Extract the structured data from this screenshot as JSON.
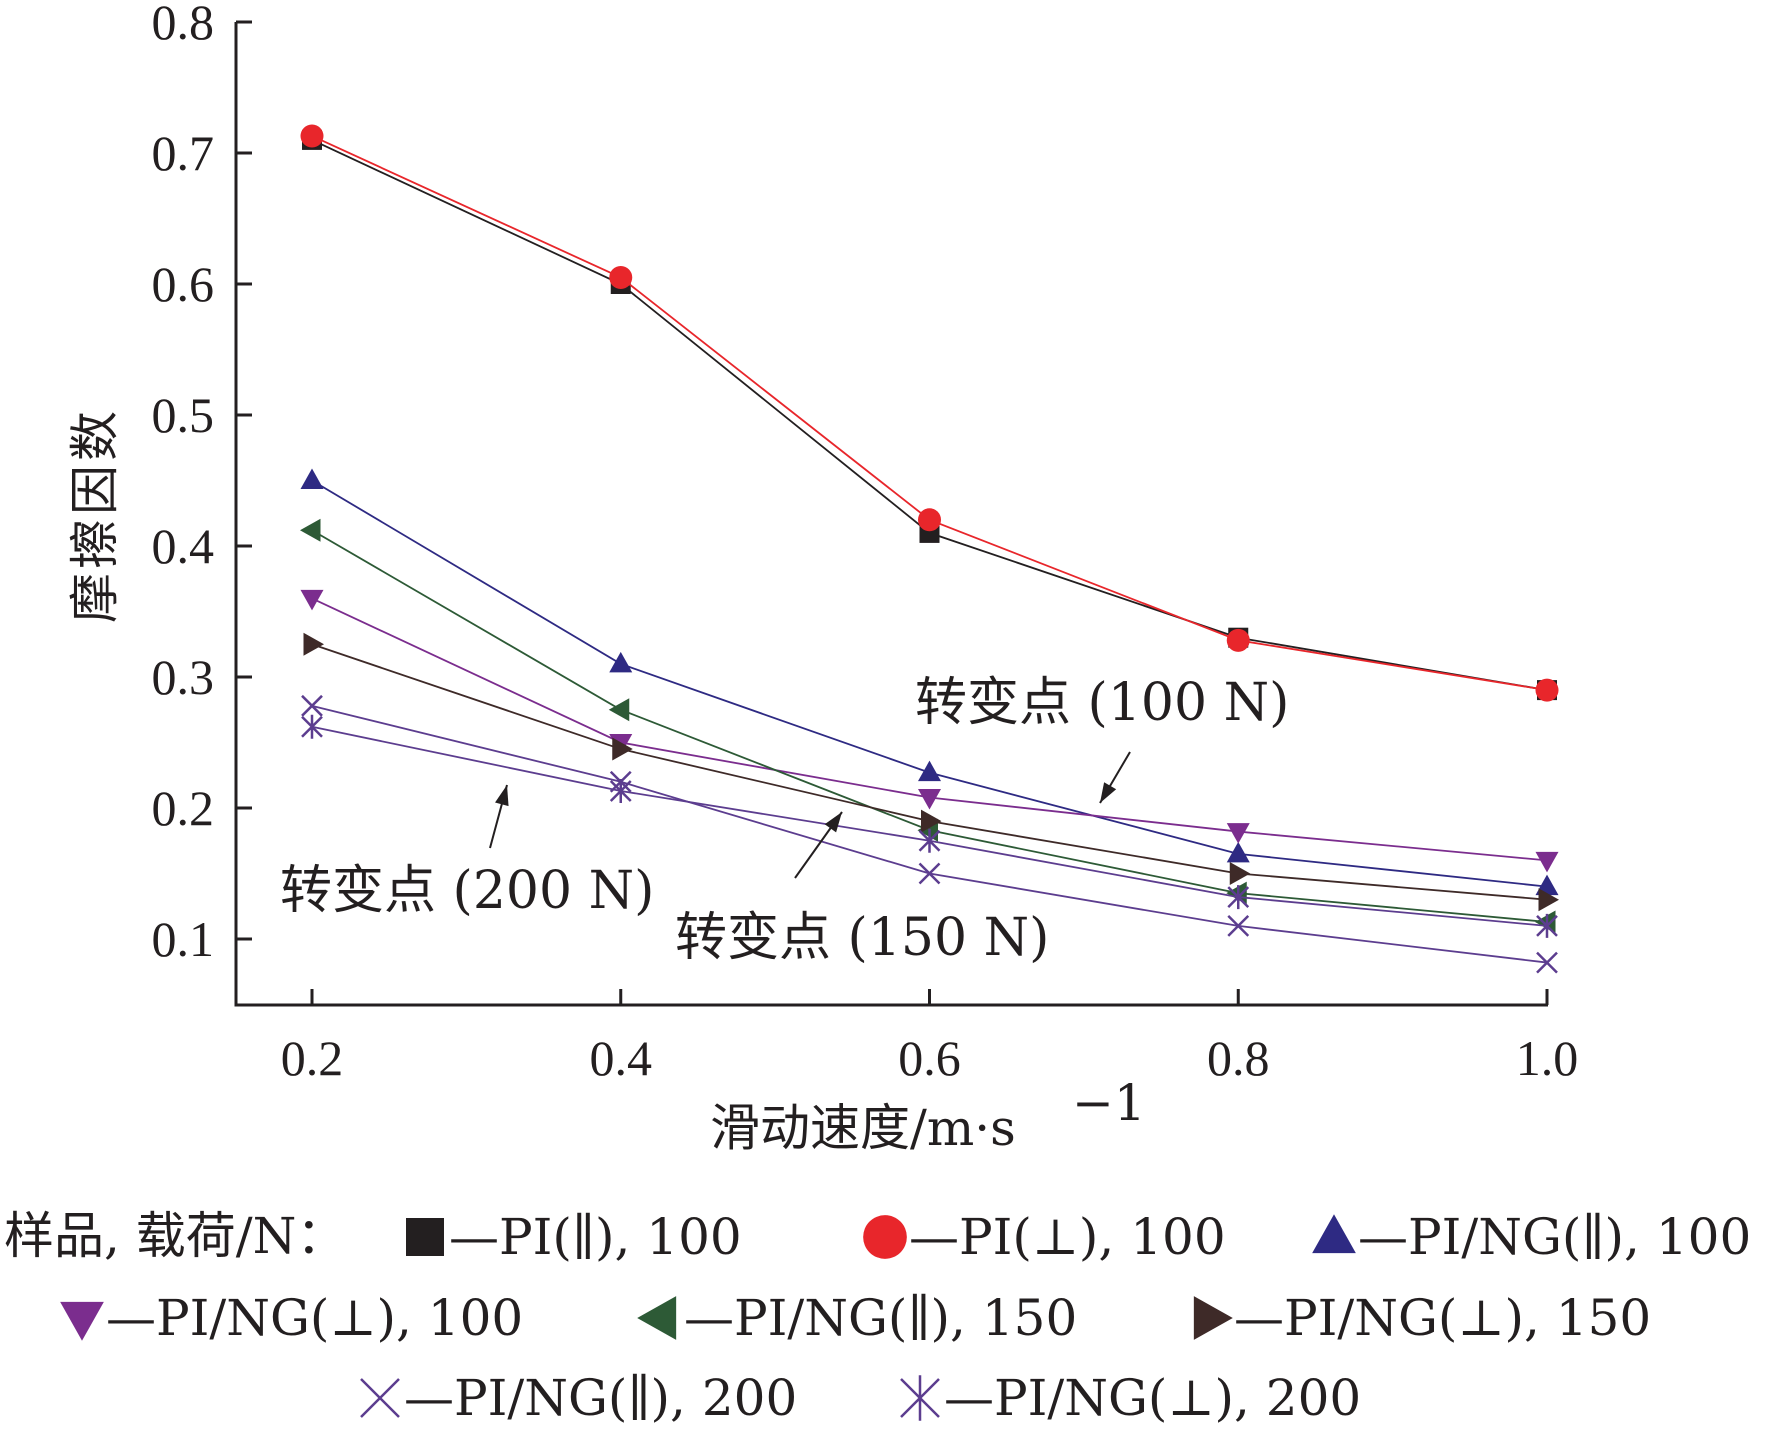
{
  "chart_data": {
    "type": "line",
    "xlabel": "滑动速度/m·s",
    "xlabel_sup": "−1",
    "ylabel": "摩擦因数",
    "x": [
      0.2,
      0.4,
      0.6,
      0.8,
      1.0
    ],
    "x_tick_labels": [
      "0.2",
      "0.4",
      "0.6",
      "0.8",
      "1.0"
    ],
    "xlim": [
      0.15,
      1.0
    ],
    "y_ticks": [
      0.1,
      0.2,
      0.3,
      0.4,
      0.5,
      0.6,
      0.7,
      0.8
    ],
    "y_tick_labels": [
      "0.1",
      "0.2",
      "0.3",
      "0.4",
      "0.5",
      "0.6",
      "0.7",
      "0.8"
    ],
    "ylim": [
      0.05,
      0.8
    ],
    "grid": false,
    "series": [
      {
        "name": "PI(∥), 100",
        "marker": "square",
        "color": "#231f20",
        "values": [
          0.71,
          0.6,
          0.41,
          0.33,
          0.29
        ]
      },
      {
        "name": "PI(⊥), 100",
        "marker": "circle",
        "color": "#e8262b",
        "values": [
          0.713,
          0.605,
          0.42,
          0.328,
          0.29
        ]
      },
      {
        "name": "PI/NG(∥), 100",
        "marker": "triangle-up",
        "color": "#2e2a83",
        "values": [
          0.45,
          0.31,
          0.227,
          0.165,
          0.14
        ]
      },
      {
        "name": "PI/NG(⊥), 100",
        "marker": "triangle-down",
        "color": "#7b2d8e",
        "values": [
          0.36,
          0.25,
          0.208,
          0.182,
          0.16
        ]
      },
      {
        "name": "PI/NG(∥), 150",
        "marker": "triangle-left",
        "color": "#2d5a36",
        "values": [
          0.412,
          0.275,
          0.183,
          0.135,
          0.113
        ]
      },
      {
        "name": "PI/NG(⊥), 150",
        "marker": "triangle-right",
        "color": "#3e2a28",
        "values": [
          0.325,
          0.245,
          0.19,
          0.15,
          0.13
        ]
      },
      {
        "name": "PI/NG(∥), 200",
        "marker": "x",
        "color": "#5c3d8f",
        "values": [
          0.278,
          0.22,
          0.15,
          0.11,
          0.082
        ]
      },
      {
        "name": "PI/NG(⊥), 200",
        "marker": "star",
        "color": "#5c3d8f",
        "values": [
          0.262,
          0.213,
          0.175,
          0.132,
          0.11
        ]
      }
    ],
    "annotations": [
      {
        "text": "转变点 (100 N)"
      },
      {
        "text": "转变点 (150 N)"
      },
      {
        "text": "转变点 (200 N)"
      }
    ],
    "legend": {
      "title": "样品, 载荷/N：",
      "placement": "bottom",
      "entries": [
        "—PI(∥), 100",
        "—PI(⊥), 100",
        "—PI/NG(∥), 100",
        "—PI/NG(⊥), 100",
        "—PI/NG(∥), 150",
        "—PI/NG(⊥), 150",
        "—PI/NG(∥), 200",
        "—PI/NG(⊥), 200"
      ]
    }
  }
}
